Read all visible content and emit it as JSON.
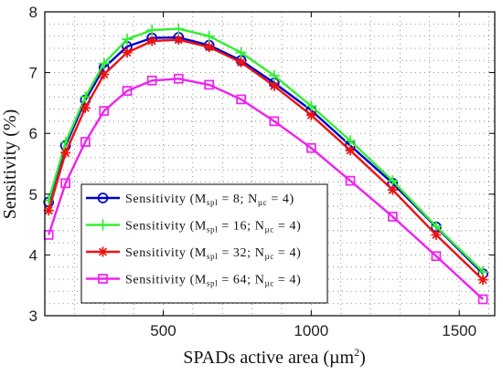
{
  "chart_data": {
    "type": "line",
    "xlabel": "SPADs active area (µm",
    "xlabel_sup": "2",
    "xlabel_close": ")",
    "ylabel": "Sensitivity (%)",
    "xlim": [
      100,
      1620
    ],
    "ylim": [
      3,
      8
    ],
    "xticks": [
      500,
      1000,
      1500
    ],
    "yticks": [
      3,
      4,
      5,
      6,
      7,
      8
    ],
    "xtick_labels": [
      "500",
      "1000",
      "1500"
    ],
    "ytick_labels": [
      "3",
      "4",
      "5",
      "6",
      "7",
      "8"
    ],
    "grid": true,
    "legend_position": "lower-left",
    "x": [
      113,
      170,
      237,
      300,
      378,
      462,
      552,
      655,
      763,
      875,
      1000,
      1132,
      1275,
      1422,
      1580
    ],
    "series": [
      {
        "name": "Sensitivity (M_spl = 8; N_µc = 4)",
        "legend": {
          "pre": "Sensitivity (M",
          "sub1": "spl",
          "mid": " = 8; N",
          "sub2": "µc",
          "post": " = 4)"
        },
        "color": "#0000cc",
        "marker": "circle",
        "values": [
          4.87,
          5.8,
          6.55,
          7.08,
          7.43,
          7.57,
          7.58,
          7.45,
          7.2,
          6.83,
          6.38,
          5.8,
          5.18,
          4.46,
          3.69
        ]
      },
      {
        "name": "Sensitivity (M_spl = 16; N_µc = 4)",
        "legend": {
          "pre": "Sensitivity (M",
          "sub1": "spl",
          "mid": " = 16; N",
          "sub2": "µc",
          "post": " = 4)"
        },
        "color": "#33ee33",
        "marker": "plus",
        "values": [
          4.9,
          5.85,
          6.6,
          7.15,
          7.55,
          7.7,
          7.72,
          7.6,
          7.33,
          6.95,
          6.45,
          5.88,
          5.22,
          4.47,
          3.72
        ]
      },
      {
        "name": "Sensitivity (M_spl = 32; N_µc = 4)",
        "legend": {
          "pre": "Sensitivity (M",
          "sub1": "spl",
          "mid": " = 32; N",
          "sub2": "µc",
          "post": " = 4)"
        },
        "color": "#ee1111",
        "marker": "asterisk",
        "values": [
          4.73,
          5.68,
          6.42,
          6.97,
          7.33,
          7.52,
          7.54,
          7.42,
          7.17,
          6.78,
          6.3,
          5.72,
          5.07,
          4.33,
          3.59
        ]
      },
      {
        "name": "Sensitivity (M_spl = 64; N_µc = 4)",
        "legend": {
          "pre": "Sensitivity (M",
          "sub1": "spl",
          "mid": " = 64; N",
          "sub2": "µc",
          "post": " = 4)"
        },
        "color": "#ee22ee",
        "marker": "square",
        "values": [
          4.33,
          5.18,
          5.86,
          6.37,
          6.7,
          6.87,
          6.9,
          6.8,
          6.56,
          6.2,
          5.76,
          5.22,
          4.63,
          3.98,
          3.27
        ]
      }
    ]
  }
}
